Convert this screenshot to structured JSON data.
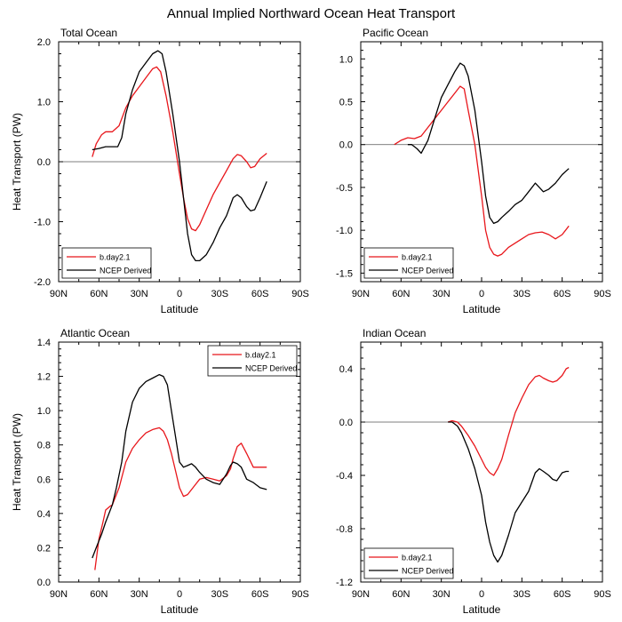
{
  "figure_title": "Annual Implied Northward Ocean Heat Transport",
  "colors": {
    "model": "#e8161b",
    "obs": "#000000",
    "zero_line": "#555555"
  },
  "chart_data": [
    {
      "type": "line",
      "title": "Total Ocean",
      "xlabel": "Latitude",
      "ylabel": "Heat Transport (PW)",
      "xlim": [
        -90,
        90
      ],
      "ylim": [
        -2.0,
        2.0
      ],
      "x_ticks": [
        -90,
        -60,
        -30,
        0,
        30,
        60,
        90
      ],
      "x_tick_labels": [
        "90N",
        "60N",
        "30N",
        "0",
        "30S",
        "60S",
        "90S"
      ],
      "y_ticks": [
        -2.0,
        -1.0,
        0.0,
        1.0,
        2.0
      ],
      "y_tick_labels": [
        "-2.0",
        "-1.0",
        "0.0",
        "1.0",
        "2.0"
      ],
      "zero_line": true,
      "legend": "bottom-left",
      "series": [
        {
          "name": "b.day2.1",
          "color": "#e8161b",
          "x": [
            -65,
            -62,
            -58,
            -55,
            -50,
            -45,
            -40,
            -35,
            -30,
            -25,
            -20,
            -17,
            -14,
            -10,
            -5,
            0,
            3,
            6,
            9,
            12,
            15,
            20,
            25,
            30,
            35,
            40,
            43,
            46,
            50,
            53,
            56,
            60,
            65
          ],
          "y": [
            0.08,
            0.3,
            0.45,
            0.5,
            0.5,
            0.6,
            0.9,
            1.1,
            1.25,
            1.4,
            1.55,
            1.58,
            1.5,
            1.1,
            0.5,
            -0.2,
            -0.6,
            -0.95,
            -1.12,
            -1.15,
            -1.05,
            -0.8,
            -0.55,
            -0.35,
            -0.15,
            0.05,
            0.12,
            0.1,
            0.0,
            -0.1,
            -0.08,
            0.05,
            0.14
          ]
        },
        {
          "name": "NCEP Derived",
          "color": "#000000",
          "x": [
            -65,
            -60,
            -55,
            -50,
            -46,
            -43,
            -40,
            -35,
            -30,
            -25,
            -20,
            -16,
            -13,
            -10,
            -5,
            0,
            3,
            6,
            9,
            12,
            15,
            20,
            25,
            30,
            35,
            40,
            43,
            46,
            50,
            53,
            56,
            60,
            65
          ],
          "y": [
            0.2,
            0.22,
            0.25,
            0.25,
            0.25,
            0.4,
            0.8,
            1.2,
            1.5,
            1.65,
            1.8,
            1.85,
            1.8,
            1.5,
            0.8,
            0.0,
            -0.6,
            -1.2,
            -1.55,
            -1.65,
            -1.65,
            -1.55,
            -1.35,
            -1.1,
            -0.9,
            -0.6,
            -0.55,
            -0.6,
            -0.75,
            -0.82,
            -0.8,
            -0.6,
            -0.33
          ]
        }
      ]
    },
    {
      "type": "line",
      "title": "Pacific Ocean",
      "xlabel": "Latitude",
      "ylabel": "",
      "xlim": [
        -90,
        90
      ],
      "ylim": [
        -1.6,
        1.2
      ],
      "x_ticks": [
        -90,
        -60,
        -30,
        0,
        30,
        60,
        90
      ],
      "x_tick_labels": [
        "90N",
        "60N",
        "30N",
        "0",
        "30S",
        "60S",
        "90S"
      ],
      "y_ticks": [
        -1.5,
        -1.0,
        -0.5,
        0.0,
        0.5,
        1.0
      ],
      "y_tick_labels": [
        "-1.5",
        "-1.0",
        "-0.5",
        "0.0",
        "0.5",
        "1.0"
      ],
      "zero_line": true,
      "legend": "bottom-left",
      "series": [
        {
          "name": "b.day2.1",
          "color": "#e8161b",
          "x": [
            -65,
            -60,
            -55,
            -50,
            -45,
            -40,
            -35,
            -30,
            -25,
            -20,
            -16,
            -13,
            -10,
            -5,
            0,
            3,
            6,
            9,
            12,
            15,
            20,
            25,
            30,
            35,
            40,
            45,
            50,
            55,
            60,
            65
          ],
          "y": [
            0.0,
            0.05,
            0.08,
            0.07,
            0.1,
            0.2,
            0.3,
            0.4,
            0.5,
            0.6,
            0.68,
            0.65,
            0.4,
            0.0,
            -0.6,
            -1.0,
            -1.2,
            -1.28,
            -1.3,
            -1.28,
            -1.2,
            -1.15,
            -1.1,
            -1.05,
            -1.03,
            -1.02,
            -1.05,
            -1.1,
            -1.05,
            -0.95
          ]
        },
        {
          "name": "NCEP Derived",
          "color": "#000000",
          "x": [
            -55,
            -52,
            -48,
            -45,
            -40,
            -35,
            -30,
            -25,
            -20,
            -16,
            -13,
            -10,
            -5,
            0,
            3,
            6,
            9,
            12,
            15,
            20,
            25,
            30,
            35,
            40,
            43,
            46,
            50,
            55,
            60,
            65
          ],
          "y": [
            0.0,
            0.0,
            -0.05,
            -0.1,
            0.05,
            0.3,
            0.55,
            0.7,
            0.85,
            0.95,
            0.92,
            0.8,
            0.4,
            -0.2,
            -0.6,
            -0.85,
            -0.92,
            -0.9,
            -0.85,
            -0.78,
            -0.7,
            -0.65,
            -0.55,
            -0.45,
            -0.5,
            -0.55,
            -0.52,
            -0.45,
            -0.35,
            -0.28
          ]
        }
      ]
    },
    {
      "type": "line",
      "title": "Atlantic Ocean",
      "xlabel": "Latitude",
      "ylabel": "Heat Transport (PW)",
      "xlim": [
        -90,
        90
      ],
      "ylim": [
        0.0,
        1.4
      ],
      "x_ticks": [
        -90,
        -60,
        -30,
        0,
        30,
        60,
        90
      ],
      "x_tick_labels": [
        "90N",
        "60N",
        "30N",
        "0",
        "30S",
        "60S",
        "90S"
      ],
      "y_ticks": [
        0.0,
        0.2,
        0.4,
        0.6,
        0.8,
        1.0,
        1.2,
        1.4
      ],
      "y_tick_labels": [
        "0.0",
        "0.2",
        "0.4",
        "0.6",
        "0.8",
        "1.0",
        "1.2",
        "1.4"
      ],
      "zero_line": false,
      "legend": "top-right",
      "series": [
        {
          "name": "b.day2.1",
          "color": "#e8161b",
          "x": [
            -63,
            -60,
            -57,
            -55,
            -52,
            -50,
            -45,
            -40,
            -35,
            -30,
            -25,
            -20,
            -15,
            -12,
            -9,
            -6,
            -3,
            0,
            3,
            6,
            9,
            12,
            15,
            20,
            25,
            30,
            35,
            38,
            40,
            43,
            46,
            50,
            55,
            60,
            65
          ],
          "y": [
            0.07,
            0.25,
            0.35,
            0.42,
            0.44,
            0.45,
            0.55,
            0.7,
            0.78,
            0.83,
            0.87,
            0.89,
            0.9,
            0.88,
            0.83,
            0.75,
            0.65,
            0.55,
            0.5,
            0.51,
            0.54,
            0.57,
            0.6,
            0.61,
            0.6,
            0.59,
            0.62,
            0.66,
            0.72,
            0.79,
            0.81,
            0.75,
            0.67,
            0.67,
            0.67
          ]
        },
        {
          "name": "NCEP Derived",
          "color": "#000000",
          "x": [
            -65,
            -62,
            -58,
            -55,
            -50,
            -47,
            -43,
            -40,
            -35,
            -30,
            -25,
            -20,
            -15,
            -12,
            -9,
            -6,
            -3,
            0,
            3,
            6,
            9,
            12,
            15,
            20,
            25,
            30,
            35,
            38,
            40,
            43,
            46,
            50,
            55,
            60,
            65
          ],
          "y": [
            0.14,
            0.2,
            0.28,
            0.35,
            0.45,
            0.55,
            0.7,
            0.88,
            1.05,
            1.13,
            1.17,
            1.19,
            1.21,
            1.2,
            1.15,
            1.0,
            0.85,
            0.7,
            0.67,
            0.68,
            0.69,
            0.67,
            0.64,
            0.6,
            0.58,
            0.57,
            0.63,
            0.68,
            0.7,
            0.69,
            0.67,
            0.6,
            0.58,
            0.55,
            0.54
          ]
        }
      ]
    },
    {
      "type": "line",
      "title": "Indian Ocean",
      "xlabel": "Latitude",
      "ylabel": "",
      "xlim": [
        -90,
        90
      ],
      "ylim": [
        -1.2,
        0.6
      ],
      "x_ticks": [
        -90,
        -60,
        -30,
        0,
        30,
        60,
        90
      ],
      "x_tick_labels": [
        "90N",
        "60N",
        "30N",
        "0",
        "30S",
        "60S",
        "90S"
      ],
      "y_ticks": [
        -1.2,
        -0.8,
        -0.4,
        0.0,
        0.4
      ],
      "y_tick_labels": [
        "-1.2",
        "-0.8",
        "-0.4",
        "0.0",
        "0.4"
      ],
      "zero_line": true,
      "legend": "bottom-left",
      "series": [
        {
          "name": "b.day2.1",
          "color": "#e8161b",
          "x": [
            -25,
            -22,
            -18,
            -15,
            -10,
            -5,
            0,
            3,
            6,
            9,
            12,
            15,
            20,
            25,
            30,
            35,
            40,
            43,
            46,
            50,
            53,
            56,
            60,
            63,
            65
          ],
          "y": [
            0.0,
            0.01,
            0.0,
            -0.03,
            -0.1,
            -0.18,
            -0.28,
            -0.34,
            -0.38,
            -0.4,
            -0.35,
            -0.28,
            -0.1,
            0.07,
            0.18,
            0.28,
            0.34,
            0.35,
            0.33,
            0.31,
            0.3,
            0.31,
            0.35,
            0.4,
            0.41
          ]
        },
        {
          "name": "NCEP Derived",
          "color": "#000000",
          "x": [
            -25,
            -22,
            -18,
            -15,
            -10,
            -5,
            0,
            3,
            6,
            9,
            12,
            15,
            20,
            25,
            30,
            35,
            40,
            43,
            46,
            50,
            53,
            56,
            60,
            63,
            65
          ],
          "y": [
            0.0,
            0.0,
            -0.03,
            -0.08,
            -0.2,
            -0.35,
            -0.55,
            -0.75,
            -0.9,
            -1.0,
            -1.05,
            -1.0,
            -0.85,
            -0.68,
            -0.6,
            -0.52,
            -0.38,
            -0.35,
            -0.37,
            -0.4,
            -0.43,
            -0.44,
            -0.38,
            -0.37,
            -0.37
          ]
        }
      ]
    }
  ]
}
